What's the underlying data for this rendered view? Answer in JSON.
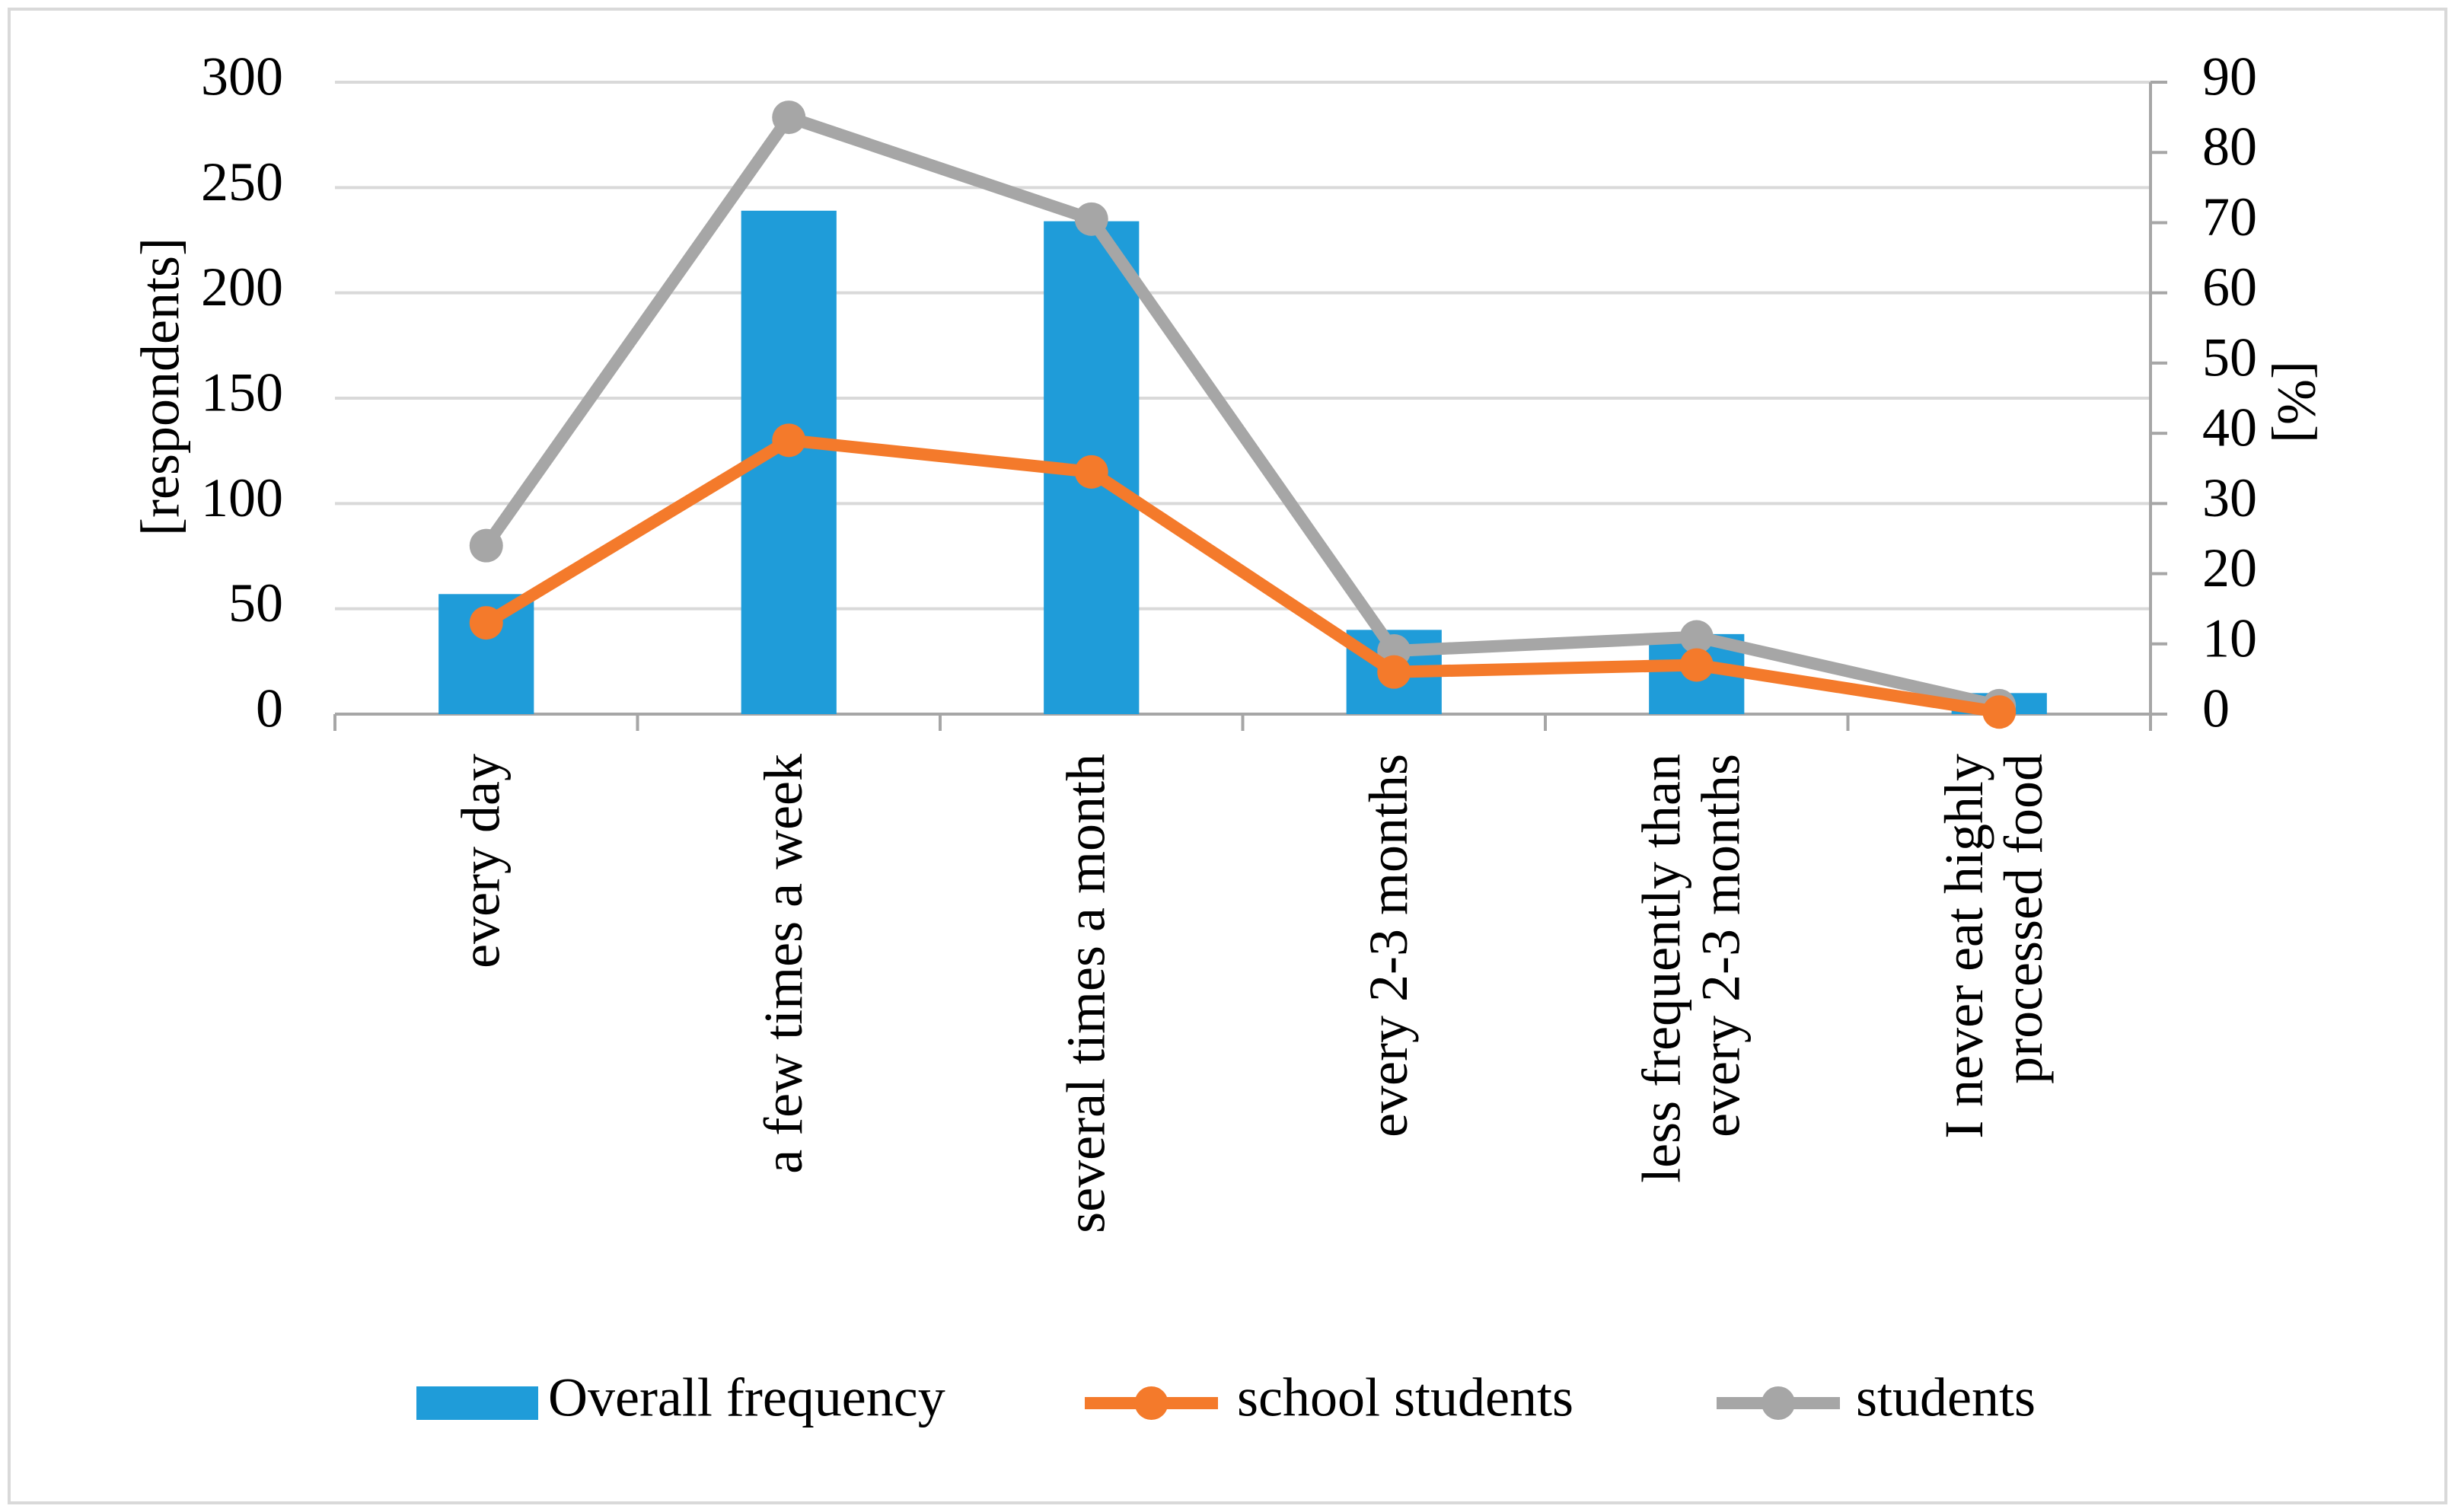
{
  "chart_data": {
    "type": "bar",
    "categories": [
      [
        "every day"
      ],
      [
        "a few times a week"
      ],
      [
        "several times a month"
      ],
      [
        "every 2-3 months"
      ],
      [
        "less frequently than",
        "every 2-3 months"
      ],
      [
        "I never eat highly",
        "processed food"
      ]
    ],
    "y_left": {
      "label": "[respondents]",
      "ylim": [
        0,
        300
      ],
      "ticks": [
        "0",
        "50",
        "100",
        "150",
        "200",
        "250",
        "300"
      ]
    },
    "y_right": {
      "label": "[%]",
      "ylim": [
        0,
        90
      ],
      "ticks": [
        "0",
        "10",
        "20",
        "30",
        "40",
        "50",
        "60",
        "70",
        "80",
        "90"
      ]
    },
    "grid": true,
    "legend_position": "bottom",
    "series": [
      {
        "name": "Overall frequency",
        "kind": "bar",
        "axis": "left",
        "color": "#1f9cd9",
        "values": [
          57,
          239,
          234,
          40,
          38,
          10
        ]
      },
      {
        "name": "school students",
        "kind": "line",
        "axis": "right",
        "color": "#f47a2b",
        "values": [
          13,
          39,
          34.5,
          6,
          7,
          0.3
        ]
      },
      {
        "name": "students",
        "kind": "line",
        "axis": "right",
        "color": "#a6a6a6",
        "values": [
          24,
          85,
          70.5,
          9,
          11,
          1.2
        ]
      }
    ]
  }
}
